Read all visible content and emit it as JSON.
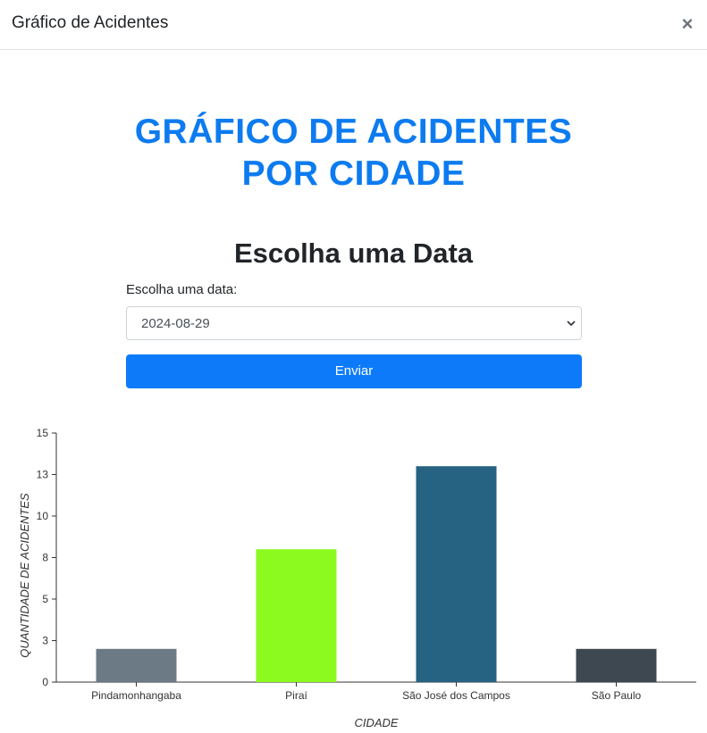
{
  "modal": {
    "title": "Gráfico de Acidentes",
    "close_symbol": "×"
  },
  "main": {
    "title_line1": "GRÁFICO DE ACIDENTES",
    "title_line2": "POR CIDADE",
    "section_heading": "Escolha uma Data",
    "date_label": "Escolha uma data:",
    "date_value": "2024-08-29",
    "submit_label": "Enviar"
  },
  "colors": {
    "accent": "#0d7bf9",
    "title": "#0d7bf0"
  },
  "chart_data": {
    "type": "bar",
    "categories": [
      "Pindamonhangaba",
      "Piraí",
      "São José dos Campos",
      "São Paulo"
    ],
    "values": [
      2,
      8,
      13,
      2
    ],
    "colors": [
      "#6c7a86",
      "#8cf91f",
      "#266281",
      "#3d4850"
    ],
    "xlabel": "CIDADE",
    "ylabel": "QUANTIDADE DE ACIDENTES",
    "ylim": [
      0,
      15
    ],
    "yticks": [
      0,
      2.5,
      5,
      7.5,
      10,
      12.5,
      15
    ],
    "ytick_labels": [
      "0",
      "3",
      "5",
      "8",
      "10",
      "13",
      "15"
    ],
    "grid": false,
    "legend": "none"
  }
}
